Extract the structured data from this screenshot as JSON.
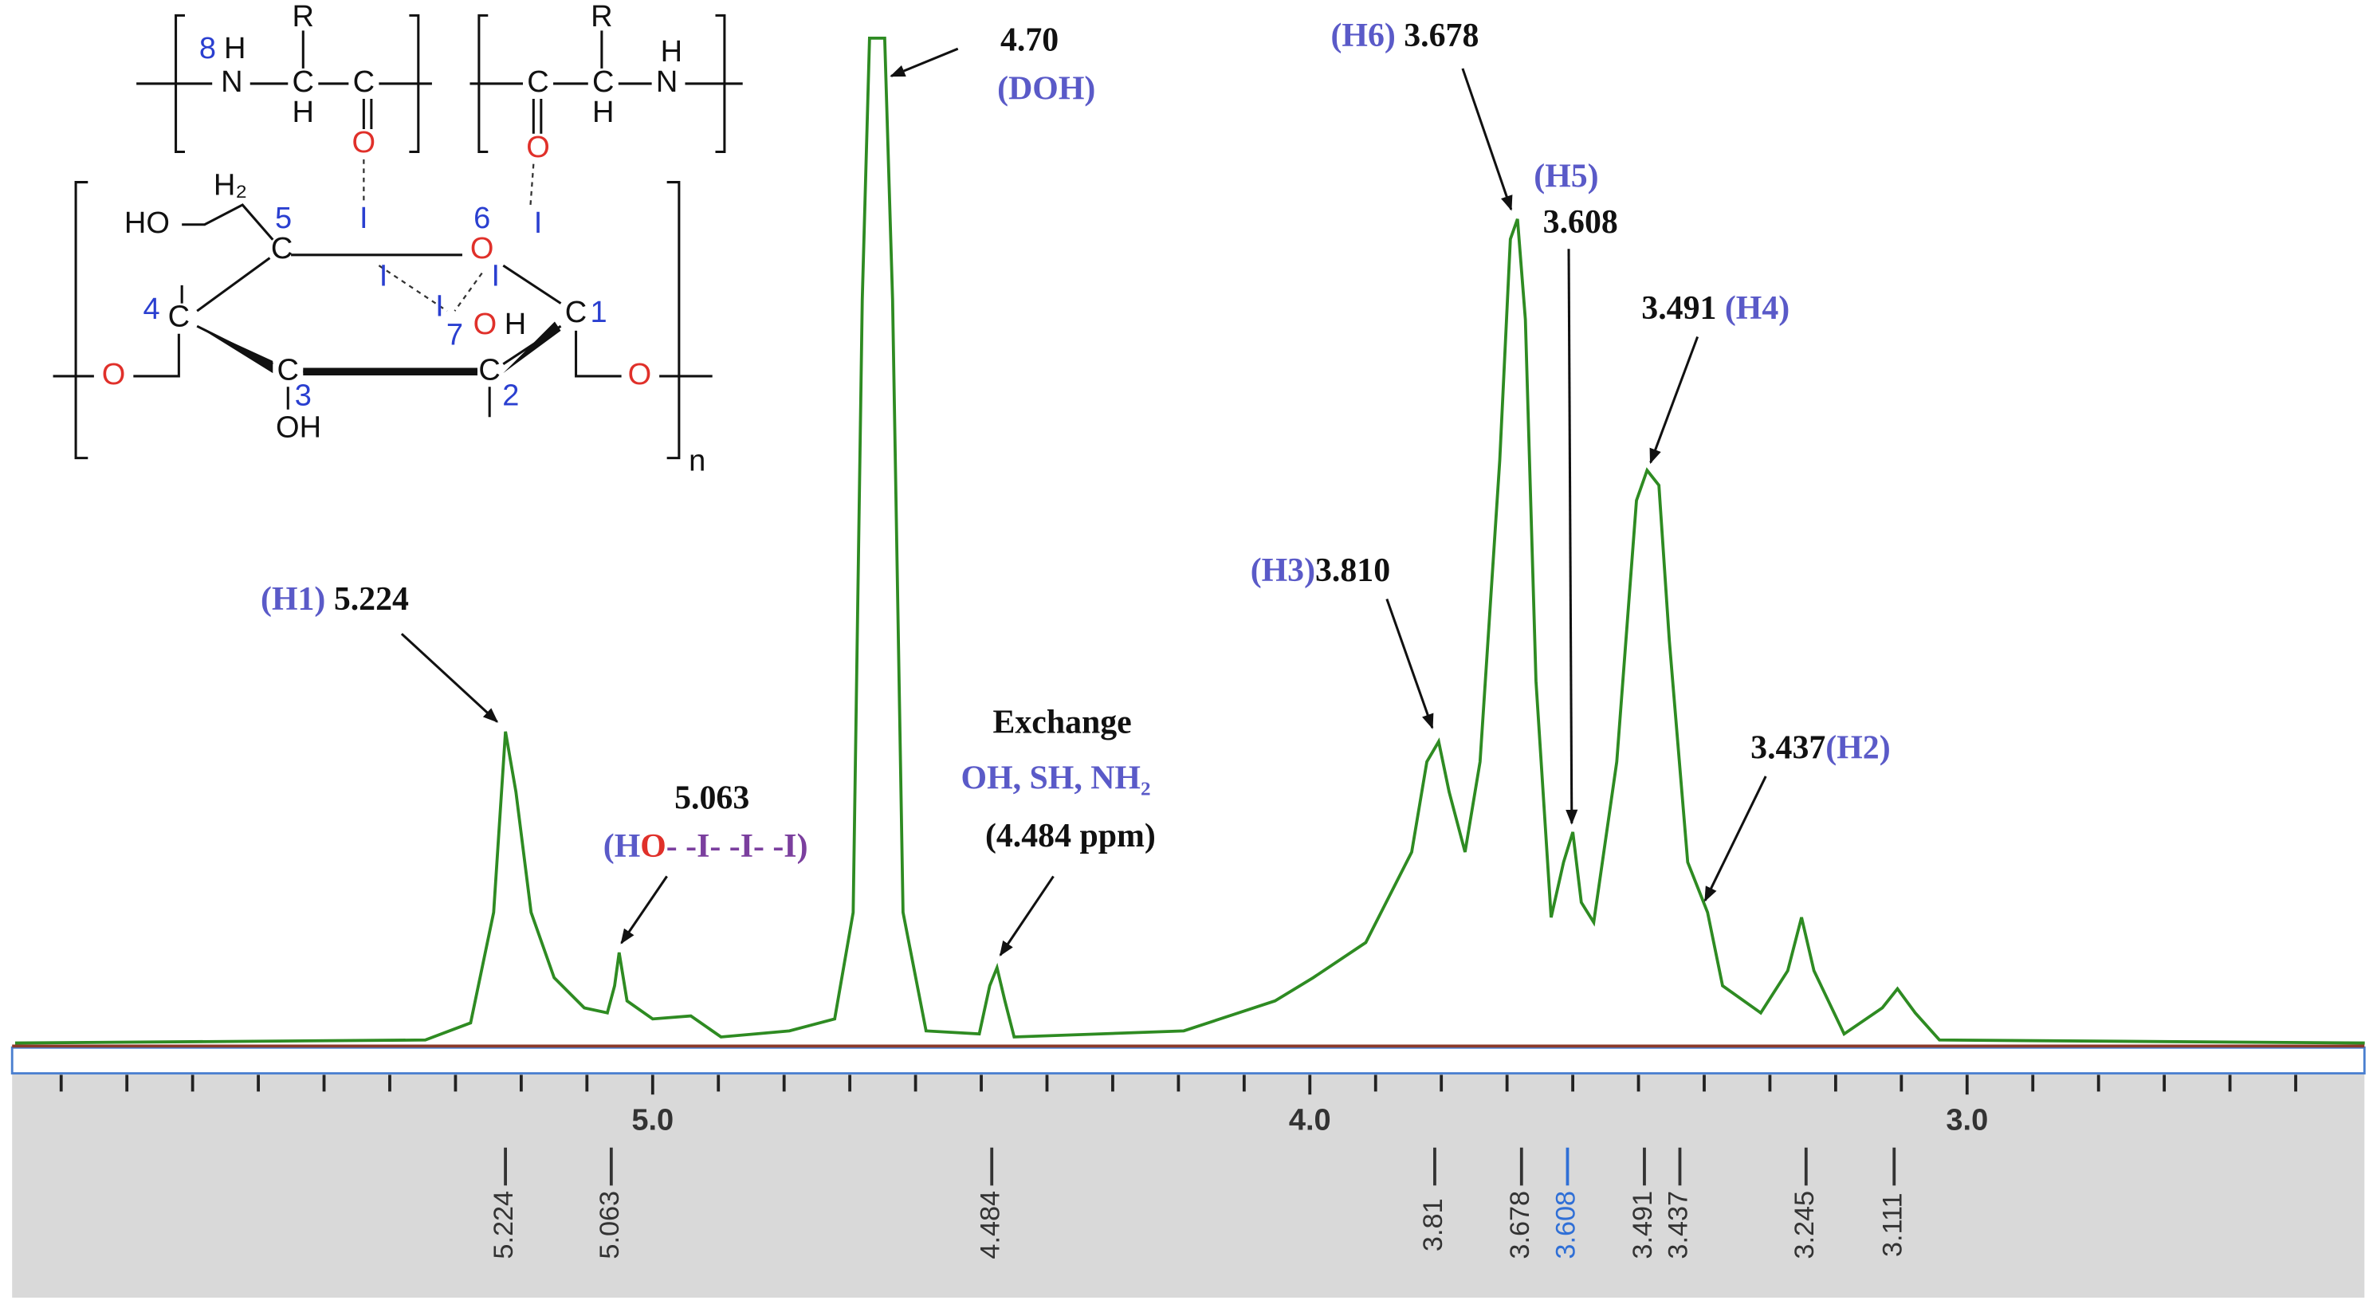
{
  "chart_data": {
    "type": "line",
    "color": "#2e8b22",
    "xlim": [
      5.97,
      2.4
    ],
    "ylim": [
      0,
      100
    ],
    "xticks": [
      {
        "value": 5,
        "label": "5.0"
      },
      {
        "value": 4,
        "label": "4.0"
      },
      {
        "value": 3,
        "label": "3.0"
      }
    ],
    "xminorticks": [
      5.9,
      5.8,
      5.7,
      5.6,
      5.5,
      5.4,
      5.3,
      5.2,
      5.1,
      4.9,
      4.8,
      4.7,
      4.6,
      4.5,
      4.4,
      4.3,
      4.2,
      4.1,
      3.9,
      3.8,
      3.7,
      3.6,
      3.5,
      3.4,
      3.3,
      3.2,
      3.1,
      2.9,
      2.8,
      2.7,
      2.6,
      2.5
    ],
    "x": [
      5.97,
      5.346,
      5.277,
      5.242,
      5.224,
      5.208,
      5.185,
      5.15,
      5.104,
      5.069,
      5.058,
      5.051,
      5.039,
      5.0,
      4.942,
      4.896,
      4.792,
      4.723,
      4.695,
      4.681,
      4.67,
      4.647,
      4.635,
      4.619,
      4.584,
      4.503,
      4.487,
      4.476,
      4.464,
      4.45,
      4.192,
      4.053,
      3.995,
      3.915,
      3.845,
      3.822,
      3.804,
      3.788,
      3.764,
      3.741,
      3.711,
      3.695,
      3.684,
      3.672,
      3.656,
      3.633,
      3.614,
      3.6,
      3.587,
      3.568,
      3.533,
      3.503,
      3.487,
      3.469,
      3.453,
      3.425,
      3.395,
      3.372,
      3.314,
      3.273,
      3.252,
      3.233,
      3.187,
      3.129,
      3.106,
      3.079,
      3.042,
      2.395
    ],
    "values": [
      0,
      0.3,
      2,
      13,
      31,
      25,
      13,
      6.5,
      3.5,
      3,
      5.7,
      9,
      4.2,
      2.4,
      2.7,
      0.6,
      1.2,
      2.4,
      13,
      74,
      100,
      100,
      74,
      13,
      1.2,
      0.9,
      5.7,
      7.5,
      4.2,
      0.6,
      1.2,
      4.2,
      6.5,
      10,
      19,
      28,
      30,
      25,
      19,
      28,
      58,
      80,
      82,
      72,
      36,
      12.5,
      18,
      21,
      14,
      12,
      28,
      54,
      57,
      55.5,
      40,
      18,
      13,
      5.7,
      3,
      7.2,
      12.5,
      7.2,
      0.9,
      3.5,
      5.4,
      3,
      0.3,
      0
    ],
    "peaks": [
      5.224,
      5.063,
      4.484,
      3.81,
      3.678,
      3.608,
      3.491,
      3.437,
      3.245,
      3.111
    ],
    "peak_colors": [
      "#333",
      "#333",
      "#333",
      "#333",
      "#333",
      "#2f6fd6",
      "#333",
      "#333",
      "#333",
      "#333"
    ],
    "annotations": [
      [
        [
          {
            "text": "(H1)",
            "color": "#5a5ac8"
          },
          {
            "text": " 5.224",
            "color": "#111"
          }
        ]
      ],
      [
        [
          {
            "text": "5.063",
            "color": "#111"
          }
        ],
        [
          {
            "text": "(H",
            "color": "#5a5ac8"
          },
          {
            "text": "O",
            "color": "#e0302a"
          },
          {
            "text": "- -I- -I- -I)",
            "color": "#7b3f9e"
          }
        ]
      ],
      [
        [
          {
            "text": "4.70",
            "color": "#111"
          }
        ],
        [
          {
            "text": "(DOH)",
            "color": "#5a5ac8"
          }
        ]
      ],
      [
        [
          {
            "text": "Exchange",
            "color": "#111"
          }
        ],
        [
          {
            "text": "OH, SH, NH₂",
            "color": "#5a5ac8"
          }
        ],
        [
          {
            "text": "(4.484 ppm)",
            "color": "#111"
          }
        ]
      ],
      [
        [
          {
            "text": "(H3)",
            "color": "#5a5ac8"
          },
          {
            "text": "3.810",
            "color": "#111"
          }
        ]
      ],
      [
        [
          {
            "text": "(H6)",
            "color": "#5a5ac8"
          },
          {
            "text": " 3.678",
            "color": "#111"
          }
        ]
      ],
      [
        [
          {
            "text": "(H5)",
            "color": "#5a5ac8"
          }
        ],
        [
          {
            "text": "3.608",
            "color": "#111"
          }
        ]
      ],
      [
        [
          {
            "text": "3.491 ",
            "color": "#111"
          },
          {
            "text": "(H4)",
            "color": "#5a5ac8"
          }
        ]
      ],
      [
        [
          {
            "text": "3.437",
            "color": "#111"
          },
          {
            "text": "(H2)",
            "color": "#5a5ac8"
          }
        ]
      ]
    ]
  },
  "structure": {
    "labels": [
      "8",
      "H",
      "N",
      "R",
      "C",
      "H",
      "C",
      "O",
      "R",
      "C",
      "C",
      "H",
      "H",
      "N",
      "O",
      "H₂",
      "HO",
      "5",
      "C",
      "6",
      "O",
      "4",
      "C",
      "I",
      "I",
      "I",
      "I",
      "I",
      "7",
      "O",
      "H",
      "C",
      "1",
      "C",
      "3",
      "OH",
      "C",
      "2",
      "O",
      "O",
      "n"
    ]
  }
}
